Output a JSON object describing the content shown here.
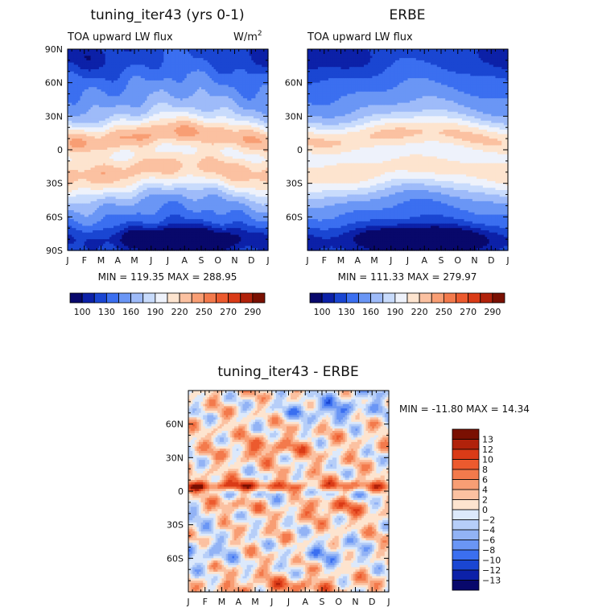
{
  "chart_data": [
    {
      "type": "heatmap",
      "id": "model",
      "title": "tuning_iter43 (yrs 0-1)",
      "subtitle": "TOA upward LW flux",
      "units": "W/m",
      "units_superscript": "2",
      "x_tick_labels": [
        "J",
        "F",
        "M",
        "A",
        "M",
        "J",
        "J",
        "A",
        "S",
        "O",
        "N",
        "D",
        "J"
      ],
      "y_tick_labels": [
        "90N",
        "60N",
        "30N",
        "0",
        "30S",
        "60S",
        "90S"
      ],
      "y_tick_values": [
        90,
        60,
        30,
        0,
        -30,
        -60,
        -90
      ],
      "ylim": [
        -90,
        90
      ],
      "xlim": [
        0,
        12
      ],
      "min": 119.35,
      "max": 288.95,
      "min_label": "MIN = 119.35 MAX = 288.95",
      "colorbar_levels": [
        100,
        115,
        130,
        145,
        160,
        175,
        190,
        205,
        220,
        235,
        250,
        260,
        270,
        280,
        290
      ],
      "colorbar_labels": [
        "100",
        "130",
        "160",
        "190",
        "220",
        "250",
        "270",
        "290"
      ],
      "colorbar_colors": [
        "#08086b",
        "#0c21a8",
        "#1a46d2",
        "#3b6ff0",
        "#6a96f5",
        "#9ebbf9",
        "#c8dbfc",
        "#eef2fb",
        "#fde4cf",
        "#fbc1a1",
        "#f89e74",
        "#f37a4c",
        "#ec5a2e",
        "#da3b17",
        "#b1220b",
        "#7a1002"
      ],
      "field": "lw_model"
    },
    {
      "type": "heatmap",
      "id": "obs",
      "title": "ERBE",
      "subtitle": "TOA upward LW flux",
      "x_tick_labels": [
        "J",
        "F",
        "M",
        "A",
        "M",
        "J",
        "J",
        "A",
        "S",
        "O",
        "N",
        "D",
        "J"
      ],
      "y_tick_labels": [
        "60N",
        "30N",
        "0",
        "30S",
        "60S"
      ],
      "y_tick_values": [
        60,
        30,
        0,
        -30,
        -60
      ],
      "ylim": [
        -90,
        90
      ],
      "xlim": [
        0,
        12
      ],
      "min": 111.33,
      "max": 279.97,
      "min_label": "MIN = 111.33 MAX = 279.97",
      "colorbar_levels": [
        100,
        115,
        130,
        145,
        160,
        175,
        190,
        205,
        220,
        235,
        250,
        260,
        270,
        280,
        290
      ],
      "colorbar_labels": [
        "100",
        "130",
        "160",
        "190",
        "220",
        "250",
        "270",
        "290"
      ],
      "colorbar_colors": [
        "#08086b",
        "#0c21a8",
        "#1a46d2",
        "#3b6ff0",
        "#6a96f5",
        "#9ebbf9",
        "#c8dbfc",
        "#eef2fb",
        "#fde4cf",
        "#fbc1a1",
        "#f89e74",
        "#f37a4c",
        "#ec5a2e",
        "#da3b17",
        "#b1220b",
        "#7a1002"
      ],
      "field": "lw_obs"
    },
    {
      "type": "heatmap",
      "id": "diff",
      "title": "tuning_iter43 - ERBE",
      "x_tick_labels": [
        "J",
        "F",
        "M",
        "A",
        "M",
        "J",
        "J",
        "A",
        "S",
        "O",
        "N",
        "D",
        "J"
      ],
      "y_tick_labels": [
        "60N",
        "30N",
        "0",
        "30S",
        "60S"
      ],
      "y_tick_values": [
        60,
        30,
        0,
        -30,
        -60
      ],
      "ylim": [
        -90,
        90
      ],
      "xlim": [
        0,
        12
      ],
      "min": -11.8,
      "max": 14.34,
      "min_label": "MIN = -11.80 MAX =  14.34",
      "colorbar_levels": [
        13,
        12,
        10,
        8,
        6,
        4,
        2,
        0,
        -2,
        -4,
        -6,
        -8,
        -10,
        -12,
        -13
      ],
      "colorbar_labels": [
        "13",
        "12",
        "10",
        "8",
        "6",
        "4",
        "2",
        "0",
        "−2",
        "−4",
        "−6",
        "−8",
        "−10",
        "−12",
        "−13"
      ],
      "colorbar_colors": [
        "#7a1002",
        "#b1220b",
        "#da3b17",
        "#ec5a2e",
        "#f37a4c",
        "#f89e74",
        "#fbc1a1",
        "#fde4cf",
        "#dce9fb",
        "#b6cef8",
        "#92b3f5",
        "#6a96f5",
        "#3b6ff0",
        "#1a46d2",
        "#0c21a8",
        "#08086b"
      ],
      "field": "lw_diff"
    }
  ]
}
